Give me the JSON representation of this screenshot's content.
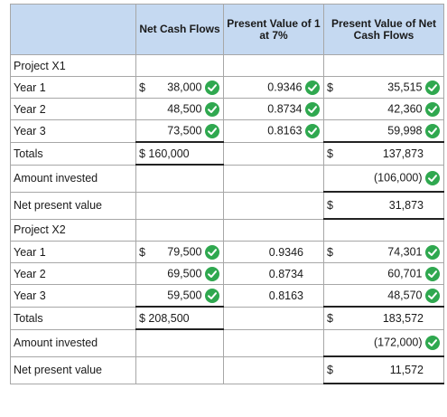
{
  "headers": {
    "col1": "",
    "col2": "Net Cash Flows",
    "col3": "Present Value of 1 at 7%",
    "col4": "Present Value of Net Cash Flows"
  },
  "x1": {
    "title": "Project X1",
    "rows": [
      {
        "label": "Year 1",
        "cash_dollar": "$",
        "cash": "38,000",
        "pv": "0.9346",
        "pvc_dollar": "$",
        "pvc": "35,515"
      },
      {
        "label": "Year 2",
        "cash_dollar": "",
        "cash": "48,500",
        "pv": "0.8734",
        "pvc_dollar": "",
        "pvc": "42,360"
      },
      {
        "label": "Year 3",
        "cash_dollar": "",
        "cash": "73,500",
        "pv": "0.8163",
        "pvc_dollar": "",
        "pvc": "59,998"
      }
    ],
    "totals_label": "Totals",
    "totals_cash": "$ 160,000",
    "totals_pvc_dollar": "$",
    "totals_pvc": "137,873",
    "amount_label": "Amount invested",
    "amount_value": "(106,000)",
    "npv_label": "Net present value",
    "npv_dollar": "$",
    "npv_value": "31,873"
  },
  "x2": {
    "title": "Project X2",
    "rows": [
      {
        "label": "Year 1",
        "cash_dollar": "$",
        "cash": "79,500",
        "pv": "0.9346",
        "pvc_dollar": "$",
        "pvc": "74,301"
      },
      {
        "label": "Year 2",
        "cash_dollar": "",
        "cash": "69,500",
        "pv": "0.8734",
        "pvc_dollar": "",
        "pvc": "60,701"
      },
      {
        "label": "Year 3",
        "cash_dollar": "",
        "cash": "59,500",
        "pv": "0.8163",
        "pvc_dollar": "",
        "pvc": "48,570"
      }
    ],
    "totals_label": "Totals",
    "totals_cash": "$ 208,500",
    "totals_pvc_dollar": "$",
    "totals_pvc": "183,572",
    "amount_label": "Amount invested",
    "amount_value": "(172,000)",
    "npv_label": "Net present value",
    "npv_dollar": "$",
    "npv_value": "11,572"
  },
  "icons": {
    "check": "check-circle-icon"
  },
  "colors": {
    "header_bg": "#c5d9f1",
    "check_green": "#2fa84f",
    "border": "#a7a7a7"
  }
}
